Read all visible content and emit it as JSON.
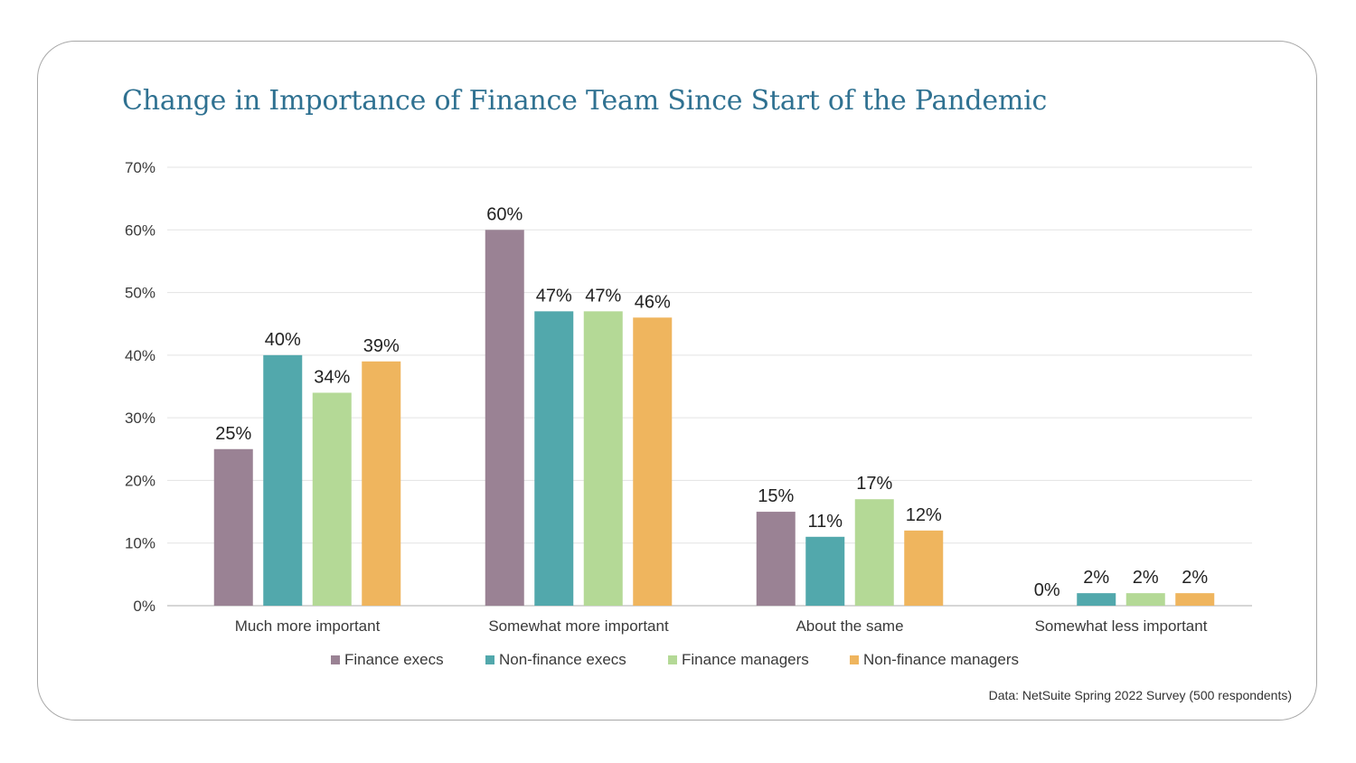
{
  "chart_data": {
    "type": "bar",
    "title": "Change in Importance of Finance Team Since Start of the Pandemic",
    "categories": [
      "Much more important",
      "Somewhat more important",
      "About the same",
      "Somewhat less important"
    ],
    "series": [
      {
        "name": "Finance execs",
        "color": "#9a8294",
        "values": [
          25,
          60,
          15,
          0
        ],
        "labels": [
          "25%",
          "60%",
          "15%",
          "0%"
        ]
      },
      {
        "name": "Non-finance execs",
        "color": "#52a8ac",
        "values": [
          40,
          47,
          11,
          2
        ],
        "labels": [
          "40%",
          "47%",
          "11%",
          "2%"
        ]
      },
      {
        "name": "Finance managers",
        "color": "#b4d996",
        "values": [
          34,
          47,
          17,
          2
        ],
        "labels": [
          "34%",
          "47%",
          "17%",
          "2%"
        ]
      },
      {
        "name": "Non-finance managers",
        "color": "#efb55e",
        "values": [
          39,
          46,
          12,
          2
        ],
        "labels": [
          "39%",
          "46%",
          "12%",
          "2%"
        ]
      }
    ],
    "ylim": [
      0,
      70
    ],
    "yticks": [
      0,
      10,
      20,
      30,
      40,
      50,
      60,
      70
    ],
    "ytick_labels": [
      "0%",
      "10%",
      "20%",
      "30%",
      "40%",
      "50%",
      "60%",
      "70%"
    ],
    "xlabel": "",
    "ylabel": "",
    "grid": true,
    "legend_position": "bottom-center",
    "source": "Data: NetSuite Spring 2022 Survey (500 respondents)"
  }
}
